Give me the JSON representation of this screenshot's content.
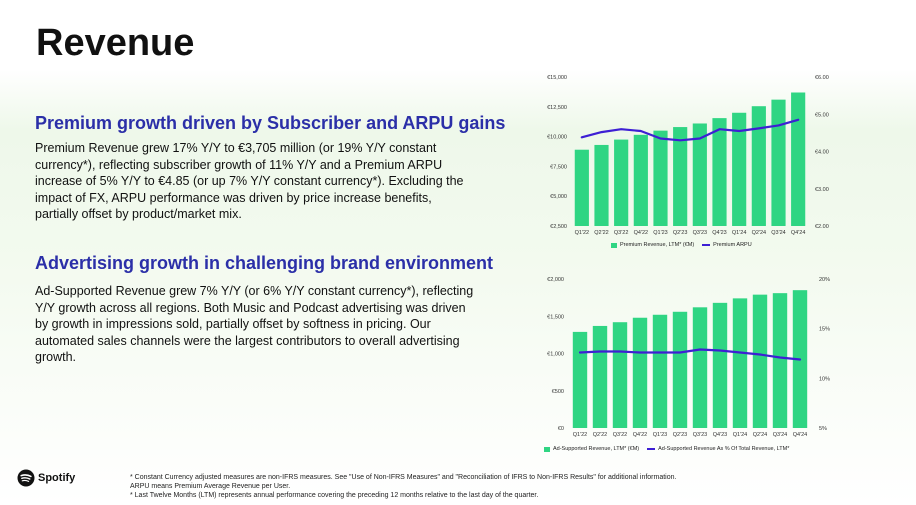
{
  "page": {
    "title": "Revenue",
    "premium_heading": "Premium growth driven by Subscriber and ARPU gains",
    "premium_text": "Premium Revenue grew 17% Y/Y to €3,705 million (or 19% Y/Y constant currency*), reflecting subscriber growth of 11% Y/Y and a Premium ARPU increase of 5% Y/Y to €4.85 (or up 7% Y/Y constant currency*). Excluding the impact of FX, ARPU performance was driven by price increase benefits, partially offset by product/market mix.",
    "ad_heading": "Advertising growth in challenging brand environment",
    "ad_text": "Ad-Supported Revenue grew 7% Y/Y (or 6% Y/Y constant currency*), reflecting Y/Y growth across all regions. Both Music and Podcast advertising was driven by growth in impressions sold, partially offset by softness in pricing. Our automated sales channels were the largest contributors to overall advertising growth.",
    "brand": "Spotify"
  },
  "footnotes": [
    "* Constant Currency adjusted measures are non-IFRS measures. See \"Use of Non-IFRS Measures\" and \"Reconciliation of IFRS to Non-IFRS Results\" for additional information.",
    "ARPU means Premium Average Revenue per User.",
    "* Last Twelve Months (LTM) represents annual performance covering the preceding 12 months relative to the last day of the quarter."
  ],
  "colors": {
    "bar": "#2fd583",
    "line": "#3d1fd4",
    "heading": "#2b2fa8",
    "brand": "#111111"
  },
  "chart_data": [
    {
      "id": "premium",
      "type": "bar",
      "categories": [
        "Q1'22",
        "Q2'22",
        "Q3'22",
        "Q4'22",
        "Q1'23",
        "Q2'23",
        "Q3'23",
        "Q4'23",
        "Q1'24",
        "Q2'24",
        "Q3'24",
        "Q4'24"
      ],
      "series": [
        {
          "name": "Premium Revenue, LTM* (€M)",
          "axis": "left",
          "kind": "bar",
          "values": [
            8900,
            9300,
            9750,
            10150,
            10500,
            10800,
            11100,
            11550,
            12000,
            12550,
            13100,
            13700
          ]
        },
        {
          "name": "Premium ARPU",
          "axis": "right",
          "kind": "line",
          "values": [
            4.38,
            4.52,
            4.6,
            4.55,
            4.35,
            4.3,
            4.35,
            4.6,
            4.55,
            4.62,
            4.7,
            4.85
          ]
        }
      ],
      "ylim_left": [
        2500,
        15000
      ],
      "yticks_left": [
        "€2,500",
        "€5,000",
        "€7,500",
        "€10,000",
        "€12,500",
        "€15,000"
      ],
      "ylim_right": [
        2,
        6
      ],
      "yticks_right": [
        "€2.00",
        "€3.00",
        "€4.00",
        "€5.00",
        "€6.00"
      ],
      "legend_position": "bottom"
    },
    {
      "id": "ad",
      "type": "bar",
      "categories": [
        "Q1'22",
        "Q2'22",
        "Q3'22",
        "Q4'22",
        "Q1'23",
        "Q2'23",
        "Q3'23",
        "Q4'23",
        "Q1'24",
        "Q2'24",
        "Q3'24",
        "Q4'24"
      ],
      "series": [
        {
          "name": "Ad-Supported Revenue, LTM* (€M)",
          "axis": "left",
          "kind": "bar",
          "values": [
            1290,
            1370,
            1420,
            1480,
            1520,
            1560,
            1620,
            1680,
            1740,
            1790,
            1810,
            1850
          ]
        },
        {
          "name": "Ad-Supported Revenue As % Of Total Revenue, LTM*",
          "axis": "right",
          "kind": "line",
          "values": [
            12.6,
            12.7,
            12.7,
            12.6,
            12.6,
            12.6,
            12.9,
            12.8,
            12.6,
            12.4,
            12.1,
            11.9
          ]
        }
      ],
      "ylim_left": [
        0,
        2000
      ],
      "yticks_left": [
        "€0",
        "€500",
        "€1,000",
        "€1,500",
        "€2,000"
      ],
      "ylim_right": [
        5,
        20
      ],
      "yticks_right": [
        "5%",
        "10%",
        "15%",
        "20%"
      ],
      "legend_position": "bottom"
    }
  ]
}
